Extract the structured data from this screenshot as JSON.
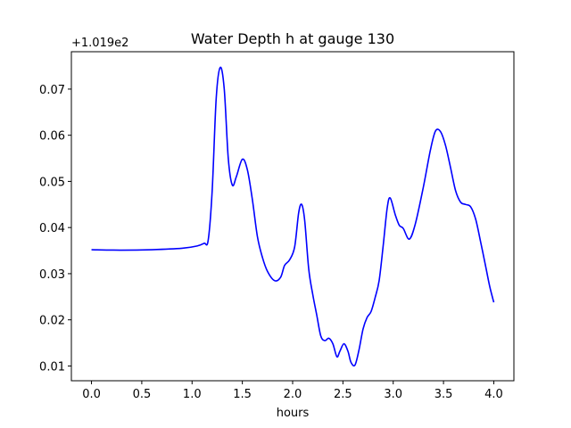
{
  "chart_data": {
    "type": "line",
    "title": "Water Depth h at gauge 130",
    "xlabel": "hours",
    "ylabel": "",
    "offset_label": "+1.019e2",
    "xlim": [
      -0.2,
      4.2
    ],
    "ylim": [
      0.0068,
      0.0781
    ],
    "xticks": [
      {
        "value": 0.0,
        "label": "0.0"
      },
      {
        "value": 0.5,
        "label": "0.5"
      },
      {
        "value": 1.0,
        "label": "1.0"
      },
      {
        "value": 1.5,
        "label": "1.5"
      },
      {
        "value": 2.0,
        "label": "2.0"
      },
      {
        "value": 2.5,
        "label": "2.5"
      },
      {
        "value": 3.0,
        "label": "3.0"
      },
      {
        "value": 3.5,
        "label": "3.5"
      },
      {
        "value": 4.0,
        "label": "4.0"
      }
    ],
    "yticks": [
      {
        "value": 0.01,
        "label": "0.01"
      },
      {
        "value": 0.02,
        "label": "0.02"
      },
      {
        "value": 0.03,
        "label": "0.03"
      },
      {
        "value": 0.04,
        "label": "0.04"
      },
      {
        "value": 0.05,
        "label": "0.05"
      },
      {
        "value": 0.06,
        "label": "0.06"
      },
      {
        "value": 0.07,
        "label": "0.07"
      }
    ],
    "grid": false,
    "series": [
      {
        "color": "#0000ff",
        "x": [
          0.0,
          0.3,
          0.6,
          0.9,
          1.05,
          1.12,
          1.16,
          1.2,
          1.24,
          1.28,
          1.32,
          1.36,
          1.4,
          1.44,
          1.5,
          1.55,
          1.6,
          1.65,
          1.7,
          1.75,
          1.82,
          1.88,
          1.92,
          1.97,
          2.02,
          2.06,
          2.09,
          2.12,
          2.16,
          2.2,
          2.24,
          2.28,
          2.32,
          2.36,
          2.4,
          2.44,
          2.47,
          2.51,
          2.55,
          2.58,
          2.62,
          2.66,
          2.7,
          2.74,
          2.78,
          2.82,
          2.86,
          2.9,
          2.94,
          2.97,
          3.02,
          3.06,
          3.1,
          3.16,
          3.22,
          3.3,
          3.37,
          3.42,
          3.47,
          3.52,
          3.57,
          3.62,
          3.67,
          3.72,
          3.77,
          3.82,
          3.87,
          3.92,
          3.96,
          4.0
        ],
        "values": [
          0.0352,
          0.0351,
          0.0352,
          0.0355,
          0.036,
          0.0366,
          0.0372,
          0.048,
          0.068,
          0.0747,
          0.07,
          0.055,
          0.0492,
          0.051,
          0.0548,
          0.0525,
          0.046,
          0.038,
          0.0335,
          0.0305,
          0.0285,
          0.0292,
          0.0318,
          0.033,
          0.0358,
          0.0432,
          0.045,
          0.0415,
          0.031,
          0.0255,
          0.021,
          0.0165,
          0.0155,
          0.016,
          0.0148,
          0.012,
          0.0132,
          0.0148,
          0.0132,
          0.0108,
          0.0102,
          0.0135,
          0.018,
          0.0205,
          0.0218,
          0.0248,
          0.0285,
          0.036,
          0.0442,
          0.0464,
          0.0428,
          0.0405,
          0.0398,
          0.0375,
          0.0408,
          0.0488,
          0.0568,
          0.0609,
          0.0608,
          0.0578,
          0.053,
          0.048,
          0.0455,
          0.045,
          0.0445,
          0.0418,
          0.0368,
          0.0315,
          0.0272,
          0.0238
        ]
      }
    ]
  }
}
